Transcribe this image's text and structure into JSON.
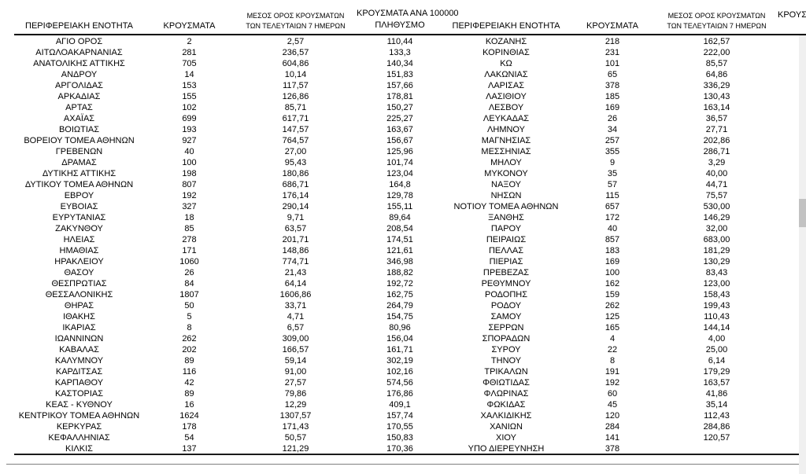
{
  "colors": {
    "rule": "#000000",
    "footer_rule": "#808080",
    "scrollbar_track": "#f0f0f0",
    "scrollbar_thumb": "#c2c2c2"
  },
  "headers": {
    "left": {
      "region": "ΠΕΡΙΦΕΡΕΙΑΚΗ ΕΝΟΤΗΤΑ",
      "cases": "ΚΡΟΥΣΜΑΤΑ",
      "avg7_l1": "ΜΕΣΟΣ ΟΡΟΣ ΚΡΟΥΣΜΑΤΩΝ",
      "avg7_l2": "ΤΩΝ ΤΕΛΕΥΤΑΙΩΝ 7 ΗΜΕΡΩΝ",
      "per100k_l1": "ΚΡΟΥΣΜΑΤΑ ΑΝΑ 100000",
      "per100k_l2": "ΠΛΗΘΥΣΜΟ"
    },
    "right": {
      "region": "ΠΕΡΙΦΕΡΕΙΑΚΗ ΕΝΟΤΗΤΑ",
      "cases": "ΚΡΟΥΣΜΑΤΑ",
      "avg7_l1": "ΜΕΣΟΣ ΟΡΟΣ ΚΡΟΥΣΜΑΤΩΝ",
      "avg7_l2": "ΤΩΝ ΤΕΛΕΥΤΑΙΩΝ 7 ΗΜΕΡΩΝ",
      "per100k_partial": "ΚΡΟΥΣ"
    }
  },
  "left_table": {
    "rows": [
      [
        "ΑΓΙΟ ΟΡΟΣ",
        "2",
        "2,57",
        "110,44"
      ],
      [
        "ΑΙΤΩΛΟΑΚΑΡΝΑΝΙΑΣ",
        "281",
        "236,57",
        "133,3"
      ],
      [
        "ΑΝΑΤΟΛΙΚΗΣ ΑΤΤΙΚΗΣ",
        "705",
        "604,86",
        "140,34"
      ],
      [
        "ΑΝΔΡΟΥ",
        "14",
        "10,14",
        "151,83"
      ],
      [
        "ΑΡΓΟΛΙΔΑΣ",
        "153",
        "117,57",
        "157,66"
      ],
      [
        "ΑΡΚΑΔΙΑΣ",
        "155",
        "126,86",
        "178,81"
      ],
      [
        "ΑΡΤΑΣ",
        "102",
        "85,71",
        "150,27"
      ],
      [
        "ΑΧΑΪΑΣ",
        "699",
        "617,71",
        "225,27"
      ],
      [
        "ΒΟΙΩΤΙΑΣ",
        "193",
        "147,57",
        "163,67"
      ],
      [
        "ΒΟΡΕΙΟΥ ΤΟΜΕΑ ΑΘΗΝΩΝ",
        "927",
        "764,57",
        "156,67"
      ],
      [
        "ΓΡΕΒΕΝΩΝ",
        "40",
        "27,00",
        "125,96"
      ],
      [
        "ΔΡΑΜΑΣ",
        "100",
        "95,43",
        "101,74"
      ],
      [
        "ΔΥΤΙΚΗΣ ΑΤΤΙΚΗΣ",
        "198",
        "180,86",
        "123,04"
      ],
      [
        "ΔΥΤΙΚΟΥ ΤΟΜΕΑ ΑΘΗΝΩΝ",
        "807",
        "686,71",
        "164,8"
      ],
      [
        "ΕΒΡΟΥ",
        "192",
        "176,14",
        "129,78"
      ],
      [
        "ΕΥΒΟΙΑΣ",
        "327",
        "290,14",
        "155,11"
      ],
      [
        "ΕΥΡΥΤΑΝΙΑΣ",
        "18",
        "9,71",
        "89,64"
      ],
      [
        "ΖΑΚΥΝΘΟΥ",
        "85",
        "63,57",
        "208,54"
      ],
      [
        "ΗΛΕΙΑΣ",
        "278",
        "201,71",
        "174,51"
      ],
      [
        "ΗΜΑΘΙΑΣ",
        "171",
        "148,86",
        "121,61"
      ],
      [
        "ΗΡΑΚΛΕΙΟΥ",
        "1060",
        "774,71",
        "346,98"
      ],
      [
        "ΘΑΣΟΥ",
        "26",
        "21,43",
        "188,82"
      ],
      [
        "ΘΕΣΠΡΩΤΙΑΣ",
        "84",
        "64,14",
        "192,72"
      ],
      [
        "ΘΕΣΣΑΛΟΝΙΚΗΣ",
        "1807",
        "1606,86",
        "162,75"
      ],
      [
        "ΘΗΡΑΣ",
        "50",
        "33,71",
        "264,79"
      ],
      [
        "ΙΘΑΚΗΣ",
        "5",
        "4,71",
        "154,75"
      ],
      [
        "ΙΚΑΡΙΑΣ",
        "8",
        "6,57",
        "80,96"
      ],
      [
        "ΙΩΑΝΝΙΝΩΝ",
        "262",
        "309,00",
        "156,04"
      ],
      [
        "ΚΑΒΑΛΑΣ",
        "202",
        "166,57",
        "161,71"
      ],
      [
        "ΚΑΛΥΜΝΟΥ",
        "89",
        "59,14",
        "302,19"
      ],
      [
        "ΚΑΡΔΙΤΣΑΣ",
        "116",
        "91,00",
        "102,16"
      ],
      [
        "ΚΑΡΠΑΘΟΥ",
        "42",
        "27,57",
        "574,56"
      ],
      [
        "ΚΑΣΤΟΡΙΑΣ",
        "89",
        "79,86",
        "176,86"
      ],
      [
        "ΚΕΑΣ - ΚΥΘΝΟΥ",
        "16",
        "12,29",
        "409,1"
      ],
      [
        "ΚΕΝΤΡΙΚΟΥ ΤΟΜΕΑ ΑΘΗΝΩΝ",
        "1624",
        "1307,57",
        "157,74"
      ],
      [
        "ΚΕΡΚΥΡΑΣ",
        "178",
        "171,43",
        "170,55"
      ],
      [
        "ΚΕΦΑΛΛΗΝΙΑΣ",
        "54",
        "50,57",
        "150,83"
      ],
      [
        "ΚΙΛΚΙΣ",
        "137",
        "121,29",
        "170,36"
      ]
    ]
  },
  "right_table": {
    "rows": [
      [
        "ΚΟΖΑΝΗΣ",
        "218",
        "162,57",
        ""
      ],
      [
        "ΚΟΡΙΝΘΙΑΣ",
        "231",
        "222,00",
        ""
      ],
      [
        "ΚΩ",
        "101",
        "85,57",
        ""
      ],
      [
        "ΛΑΚΩΝΙΑΣ",
        "65",
        "64,86",
        ""
      ],
      [
        "ΛΑΡΙΣΑΣ",
        "378",
        "336,29",
        ""
      ],
      [
        "ΛΑΣΙΘΙΟΥ",
        "185",
        "130,43",
        ""
      ],
      [
        "ΛΕΣΒΟΥ",
        "169",
        "163,14",
        ""
      ],
      [
        "ΛΕΥΚΑΔΑΣ",
        "26",
        "36,57",
        ""
      ],
      [
        "ΛΗΜΝΟΥ",
        "34",
        "27,71",
        ""
      ],
      [
        "ΜΑΓΝΗΣΙΑΣ",
        "257",
        "202,86",
        ""
      ],
      [
        "ΜΕΣΣΗΝΙΑΣ",
        "355",
        "286,71",
        ""
      ],
      [
        "ΜΗΛΟΥ",
        "9",
        "3,29",
        ""
      ],
      [
        "ΜΥΚΟΝΟΥ",
        "35",
        "40,00",
        ""
      ],
      [
        "ΝΑΞΟΥ",
        "57",
        "44,71",
        ""
      ],
      [
        "ΝΗΣΩΝ",
        "115",
        "75,57",
        ""
      ],
      [
        "ΝΟΤΙΟΥ ΤΟΜΕΑ ΑΘΗΝΩΝ",
        "657",
        "530,00",
        ""
      ],
      [
        "ΞΑΝΘΗΣ",
        "172",
        "146,29",
        ""
      ],
      [
        "ΠΑΡΟΥ",
        "40",
        "32,00",
        ""
      ],
      [
        "ΠΕΙΡΑΙΩΣ",
        "857",
        "683,00",
        ""
      ],
      [
        "ΠΕΛΛΑΣ",
        "183",
        "181,29",
        ""
      ],
      [
        "ΠΙΕΡΙΑΣ",
        "169",
        "130,29",
        ""
      ],
      [
        "ΠΡΕΒΕΖΑΣ",
        "100",
        "83,43",
        ""
      ],
      [
        "ΡΕΘΥΜΝΟΥ",
        "162",
        "123,00",
        ""
      ],
      [
        "ΡΟΔΟΠΗΣ",
        "159",
        "158,43",
        ""
      ],
      [
        "ΡΟΔΟΥ",
        "262",
        "199,43",
        ""
      ],
      [
        "ΣΑΜΟΥ",
        "125",
        "110,43",
        ""
      ],
      [
        "ΣΕΡΡΩΝ",
        "165",
        "144,14",
        ""
      ],
      [
        "ΣΠΟΡΑΔΩΝ",
        "4",
        "4,00",
        ""
      ],
      [
        "ΣΥΡΟΥ",
        "22",
        "25,00",
        ""
      ],
      [
        "ΤΗΝΟΥ",
        "8",
        "6,14",
        ""
      ],
      [
        "ΤΡΙΚΑΛΩΝ",
        "191",
        "179,29",
        ""
      ],
      [
        "ΦΘΙΩΤΙΔΑΣ",
        "192",
        "163,57",
        ""
      ],
      [
        "ΦΛΩΡΙΝΑΣ",
        "60",
        "41,86",
        ""
      ],
      [
        "ΦΩΚΙΔΑΣ",
        "45",
        "35,14",
        ""
      ],
      [
        "ΧΑΛΚΙΔΙΚΗΣ",
        "120",
        "112,43",
        ""
      ],
      [
        "ΧΑΝΙΩΝ",
        "284",
        "284,86",
        ""
      ],
      [
        "ΧΙΟΥ",
        "141",
        "120,57",
        ""
      ],
      [
        "ΥΠΟ ΔΙΕΡΕΥΝΗΣΗ",
        "378",
        "",
        ""
      ]
    ]
  }
}
